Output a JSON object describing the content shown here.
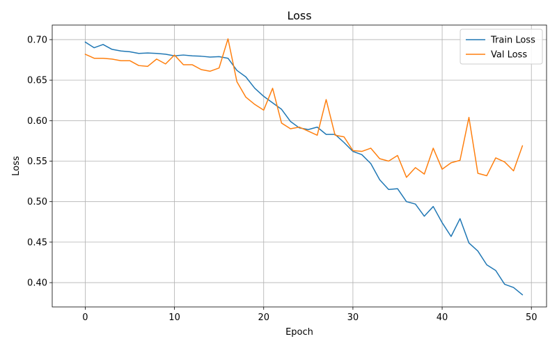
{
  "chart_data": {
    "type": "line",
    "title": "Loss",
    "xlabel": "Epoch",
    "ylabel": "Loss",
    "xlim": [
      -3.7,
      51.7
    ],
    "ylim": [
      0.37,
      0.718
    ],
    "xticks": [
      0,
      10,
      20,
      30,
      40,
      50
    ],
    "yticks": [
      0.4,
      0.45,
      0.5,
      0.55,
      0.6,
      0.65,
      0.7
    ],
    "xtick_labels": [
      "0",
      "10",
      "20",
      "30",
      "40",
      "50"
    ],
    "ytick_labels": [
      "0.40",
      "0.45",
      "0.50",
      "0.55",
      "0.60",
      "0.65",
      "0.70"
    ],
    "grid": true,
    "legend_position": "top-right",
    "x": [
      0,
      1,
      2,
      3,
      4,
      5,
      6,
      7,
      8,
      9,
      10,
      11,
      12,
      13,
      14,
      15,
      16,
      17,
      18,
      19,
      20,
      21,
      22,
      23,
      24,
      25,
      26,
      27,
      28,
      29,
      30,
      31,
      32,
      33,
      34,
      35,
      36,
      37,
      38,
      39,
      40,
      41,
      42,
      43,
      44,
      45,
      46,
      47,
      48,
      49
    ],
    "series": [
      {
        "name": "Train Loss",
        "color": "#1f77b4",
        "values": [
          0.697,
          0.69,
          0.694,
          0.688,
          0.686,
          0.685,
          0.683,
          0.6835,
          0.683,
          0.682,
          0.68,
          0.681,
          0.68,
          0.6795,
          0.6785,
          0.679,
          0.677,
          0.662,
          0.654,
          0.64,
          0.63,
          0.622,
          0.614,
          0.599,
          0.591,
          0.589,
          0.592,
          0.583,
          0.583,
          0.573,
          0.562,
          0.558,
          0.547,
          0.527,
          0.515,
          0.516,
          0.5,
          0.497,
          0.482,
          0.494,
          0.474,
          0.457,
          0.479,
          0.449,
          0.439,
          0.422,
          0.415,
          0.398,
          0.394,
          0.385
        ]
      },
      {
        "name": "Val Loss",
        "color": "#ff7f0e",
        "values": [
          0.682,
          0.677,
          0.677,
          0.676,
          0.674,
          0.674,
          0.668,
          0.667,
          0.676,
          0.67,
          0.681,
          0.669,
          0.669,
          0.663,
          0.661,
          0.665,
          0.701,
          0.648,
          0.629,
          0.62,
          0.613,
          0.64,
          0.597,
          0.59,
          0.592,
          0.587,
          0.582,
          0.626,
          0.582,
          0.58,
          0.563,
          0.562,
          0.566,
          0.553,
          0.55,
          0.557,
          0.53,
          0.542,
          0.534,
          0.566,
          0.54,
          0.548,
          0.551,
          0.604,
          0.535,
          0.532,
          0.554,
          0.549,
          0.538,
          0.569
        ]
      }
    ]
  }
}
